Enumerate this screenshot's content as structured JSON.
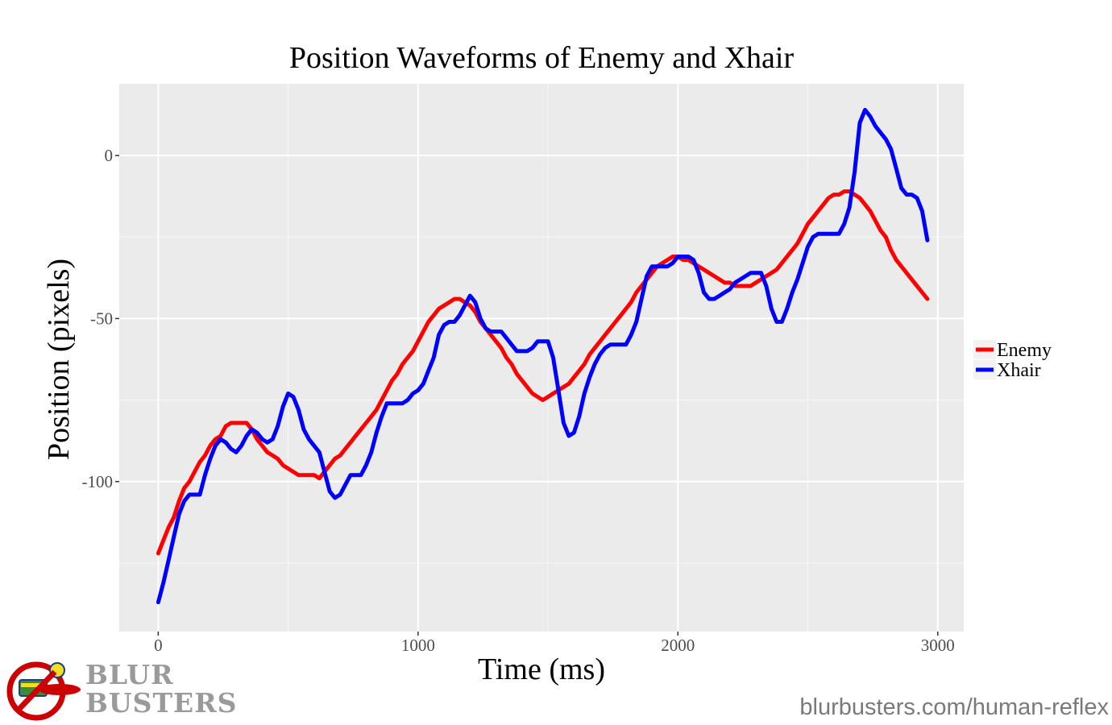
{
  "chart_data": {
    "type": "line",
    "title": "Position Waveforms of Enemy and Xhair",
    "xlabel": "Time (ms)",
    "ylabel": "Position (pixels)",
    "xlim": [
      -150,
      3100
    ],
    "ylim": [
      -146,
      22
    ],
    "x_ticks": [
      0,
      1000,
      2000,
      3000
    ],
    "x_tick_labels": [
      "0",
      "1000",
      "2000",
      "3000"
    ],
    "y_ticks": [
      0,
      -50,
      -100
    ],
    "y_tick_labels": [
      "0",
      "-50",
      "-100"
    ],
    "x_minor": [
      500,
      1500,
      2500
    ],
    "y_minor": [
      -25,
      -75,
      -125
    ],
    "grid": true,
    "legend_position": "right",
    "background": "#ebebeb",
    "series": [
      {
        "name": "Enemy",
        "color": "#ff0000",
        "points": [
          [
            0,
            -122
          ],
          [
            20,
            -118
          ],
          [
            40,
            -114
          ],
          [
            60,
            -111
          ],
          [
            80,
            -106
          ],
          [
            100,
            -102
          ],
          [
            120,
            -100
          ],
          [
            140,
            -97
          ],
          [
            160,
            -94
          ],
          [
            180,
            -92
          ],
          [
            200,
            -89
          ],
          [
            220,
            -87
          ],
          [
            240,
            -86
          ],
          [
            260,
            -83
          ],
          [
            280,
            -82
          ],
          [
            300,
            -82
          ],
          [
            320,
            -82
          ],
          [
            340,
            -82
          ],
          [
            360,
            -84
          ],
          [
            380,
            -87
          ],
          [
            400,
            -89
          ],
          [
            420,
            -91
          ],
          [
            440,
            -92
          ],
          [
            460,
            -93
          ],
          [
            480,
            -95
          ],
          [
            500,
            -96
          ],
          [
            520,
            -97
          ],
          [
            540,
            -98
          ],
          [
            560,
            -98
          ],
          [
            580,
            -98
          ],
          [
            600,
            -98
          ],
          [
            620,
            -99
          ],
          [
            640,
            -97
          ],
          [
            660,
            -95
          ],
          [
            680,
            -93
          ],
          [
            700,
            -92
          ],
          [
            720,
            -90
          ],
          [
            740,
            -88
          ],
          [
            760,
            -86
          ],
          [
            780,
            -84
          ],
          [
            800,
            -82
          ],
          [
            820,
            -80
          ],
          [
            840,
            -78
          ],
          [
            860,
            -75
          ],
          [
            880,
            -72
          ],
          [
            900,
            -69
          ],
          [
            920,
            -67
          ],
          [
            940,
            -64
          ],
          [
            960,
            -62
          ],
          [
            980,
            -60
          ],
          [
            1000,
            -57
          ],
          [
            1020,
            -54
          ],
          [
            1040,
            -51
          ],
          [
            1060,
            -49
          ],
          [
            1080,
            -47
          ],
          [
            1100,
            -46
          ],
          [
            1120,
            -45
          ],
          [
            1140,
            -44
          ],
          [
            1160,
            -44
          ],
          [
            1180,
            -45
          ],
          [
            1200,
            -46
          ],
          [
            1220,
            -48
          ],
          [
            1240,
            -51
          ],
          [
            1260,
            -53
          ],
          [
            1280,
            -55
          ],
          [
            1300,
            -57
          ],
          [
            1320,
            -59
          ],
          [
            1340,
            -62
          ],
          [
            1360,
            -64
          ],
          [
            1380,
            -67
          ],
          [
            1400,
            -69
          ],
          [
            1420,
            -71
          ],
          [
            1440,
            -73
          ],
          [
            1460,
            -74
          ],
          [
            1480,
            -75
          ],
          [
            1500,
            -74
          ],
          [
            1520,
            -73
          ],
          [
            1540,
            -72
          ],
          [
            1560,
            -71
          ],
          [
            1580,
            -70
          ],
          [
            1600,
            -68
          ],
          [
            1620,
            -66
          ],
          [
            1640,
            -64
          ],
          [
            1660,
            -61
          ],
          [
            1680,
            -59
          ],
          [
            1700,
            -57
          ],
          [
            1720,
            -55
          ],
          [
            1740,
            -53
          ],
          [
            1760,
            -51
          ],
          [
            1780,
            -49
          ],
          [
            1800,
            -47
          ],
          [
            1820,
            -45
          ],
          [
            1840,
            -42
          ],
          [
            1860,
            -40
          ],
          [
            1880,
            -38
          ],
          [
            1900,
            -36
          ],
          [
            1920,
            -34
          ],
          [
            1940,
            -33
          ],
          [
            1960,
            -32
          ],
          [
            1980,
            -31
          ],
          [
            2000,
            -31
          ],
          [
            2020,
            -32
          ],
          [
            2040,
            -32
          ],
          [
            2060,
            -33
          ],
          [
            2080,
            -34
          ],
          [
            2100,
            -35
          ],
          [
            2120,
            -36
          ],
          [
            2140,
            -37
          ],
          [
            2160,
            -38
          ],
          [
            2180,
            -39
          ],
          [
            2200,
            -39
          ],
          [
            2220,
            -40
          ],
          [
            2240,
            -40
          ],
          [
            2260,
            -40
          ],
          [
            2280,
            -40
          ],
          [
            2300,
            -39
          ],
          [
            2320,
            -38
          ],
          [
            2340,
            -37
          ],
          [
            2360,
            -36
          ],
          [
            2380,
            -35
          ],
          [
            2400,
            -33
          ],
          [
            2420,
            -31
          ],
          [
            2440,
            -29
          ],
          [
            2460,
            -27
          ],
          [
            2480,
            -24
          ],
          [
            2500,
            -21
          ],
          [
            2520,
            -19
          ],
          [
            2540,
            -17
          ],
          [
            2560,
            -15
          ],
          [
            2580,
            -13
          ],
          [
            2600,
            -12
          ],
          [
            2620,
            -12
          ],
          [
            2640,
            -11
          ],
          [
            2660,
            -11
          ],
          [
            2680,
            -12
          ],
          [
            2700,
            -13
          ],
          [
            2720,
            -15
          ],
          [
            2740,
            -17
          ],
          [
            2760,
            -20
          ],
          [
            2780,
            -23
          ],
          [
            2800,
            -25
          ],
          [
            2820,
            -29
          ],
          [
            2840,
            -32
          ],
          [
            2860,
            -34
          ],
          [
            2880,
            -36
          ],
          [
            2900,
            -38
          ],
          [
            2920,
            -40
          ],
          [
            2940,
            -42
          ],
          [
            2960,
            -44
          ]
        ]
      },
      {
        "name": "Xhair",
        "color": "#0000ff",
        "points": [
          [
            0,
            -137
          ],
          [
            20,
            -131
          ],
          [
            40,
            -124
          ],
          [
            60,
            -117
          ],
          [
            80,
            -110
          ],
          [
            100,
            -106
          ],
          [
            120,
            -104
          ],
          [
            140,
            -104
          ],
          [
            160,
            -104
          ],
          [
            180,
            -98
          ],
          [
            200,
            -93
          ],
          [
            220,
            -89
          ],
          [
            240,
            -87
          ],
          [
            260,
            -88
          ],
          [
            280,
            -90
          ],
          [
            300,
            -91
          ],
          [
            320,
            -89
          ],
          [
            340,
            -86
          ],
          [
            360,
            -84
          ],
          [
            380,
            -85
          ],
          [
            400,
            -87
          ],
          [
            420,
            -88
          ],
          [
            440,
            -87
          ],
          [
            460,
            -83
          ],
          [
            480,
            -77
          ],
          [
            500,
            -73
          ],
          [
            520,
            -74
          ],
          [
            540,
            -78
          ],
          [
            560,
            -84
          ],
          [
            580,
            -87
          ],
          [
            600,
            -89
          ],
          [
            620,
            -91
          ],
          [
            640,
            -97
          ],
          [
            660,
            -103
          ],
          [
            680,
            -105
          ],
          [
            700,
            -104
          ],
          [
            720,
            -101
          ],
          [
            740,
            -98
          ],
          [
            760,
            -98
          ],
          [
            780,
            -98
          ],
          [
            800,
            -95
          ],
          [
            820,
            -91
          ],
          [
            840,
            -85
          ],
          [
            860,
            -80
          ],
          [
            880,
            -76
          ],
          [
            900,
            -76
          ],
          [
            920,
            -76
          ],
          [
            940,
            -76
          ],
          [
            960,
            -75
          ],
          [
            980,
            -73
          ],
          [
            1000,
            -72
          ],
          [
            1020,
            -70
          ],
          [
            1040,
            -66
          ],
          [
            1060,
            -62
          ],
          [
            1080,
            -55
          ],
          [
            1100,
            -52
          ],
          [
            1120,
            -51
          ],
          [
            1140,
            -51
          ],
          [
            1160,
            -49
          ],
          [
            1180,
            -46
          ],
          [
            1200,
            -43
          ],
          [
            1220,
            -45
          ],
          [
            1240,
            -50
          ],
          [
            1260,
            -53
          ],
          [
            1280,
            -54
          ],
          [
            1300,
            -54
          ],
          [
            1320,
            -54
          ],
          [
            1340,
            -56
          ],
          [
            1360,
            -58
          ],
          [
            1380,
            -60
          ],
          [
            1400,
            -60
          ],
          [
            1420,
            -60
          ],
          [
            1440,
            -59
          ],
          [
            1460,
            -57
          ],
          [
            1480,
            -57
          ],
          [
            1500,
            -57
          ],
          [
            1520,
            -62
          ],
          [
            1540,
            -72
          ],
          [
            1560,
            -82
          ],
          [
            1580,
            -86
          ],
          [
            1600,
            -85
          ],
          [
            1620,
            -80
          ],
          [
            1640,
            -73
          ],
          [
            1660,
            -68
          ],
          [
            1680,
            -64
          ],
          [
            1700,
            -61
          ],
          [
            1720,
            -59
          ],
          [
            1740,
            -58
          ],
          [
            1760,
            -58
          ],
          [
            1780,
            -58
          ],
          [
            1800,
            -58
          ],
          [
            1820,
            -55
          ],
          [
            1840,
            -51
          ],
          [
            1860,
            -44
          ],
          [
            1880,
            -37
          ],
          [
            1900,
            -34
          ],
          [
            1920,
            -34
          ],
          [
            1940,
            -34
          ],
          [
            1960,
            -34
          ],
          [
            1980,
            -33
          ],
          [
            2000,
            -31
          ],
          [
            2020,
            -31
          ],
          [
            2040,
            -31
          ],
          [
            2060,
            -32
          ],
          [
            2080,
            -36
          ],
          [
            2100,
            -42
          ],
          [
            2120,
            -44
          ],
          [
            2140,
            -44
          ],
          [
            2160,
            -43
          ],
          [
            2180,
            -42
          ],
          [
            2200,
            -41
          ],
          [
            2220,
            -39
          ],
          [
            2240,
            -38
          ],
          [
            2260,
            -37
          ],
          [
            2280,
            -36
          ],
          [
            2300,
            -36
          ],
          [
            2320,
            -36
          ],
          [
            2340,
            -40
          ],
          [
            2360,
            -47
          ],
          [
            2380,
            -51
          ],
          [
            2400,
            -51
          ],
          [
            2420,
            -47
          ],
          [
            2440,
            -42
          ],
          [
            2460,
            -38
          ],
          [
            2480,
            -33
          ],
          [
            2500,
            -28
          ],
          [
            2520,
            -25
          ],
          [
            2540,
            -24
          ],
          [
            2560,
            -24
          ],
          [
            2580,
            -24
          ],
          [
            2600,
            -24
          ],
          [
            2620,
            -24
          ],
          [
            2640,
            -21
          ],
          [
            2660,
            -16
          ],
          [
            2680,
            -5
          ],
          [
            2700,
            10
          ],
          [
            2720,
            14
          ],
          [
            2740,
            12
          ],
          [
            2760,
            9
          ],
          [
            2780,
            7
          ],
          [
            2800,
            5
          ],
          [
            2820,
            2
          ],
          [
            2840,
            -4
          ],
          [
            2860,
            -10
          ],
          [
            2880,
            -12
          ],
          [
            2900,
            -12
          ],
          [
            2920,
            -13
          ],
          [
            2940,
            -17
          ],
          [
            2960,
            -26
          ]
        ]
      }
    ]
  },
  "branding": {
    "logo_line1": "BLUR",
    "logo_line2": "BUSTERS",
    "url": "blurbusters.com/human-reflex"
  }
}
